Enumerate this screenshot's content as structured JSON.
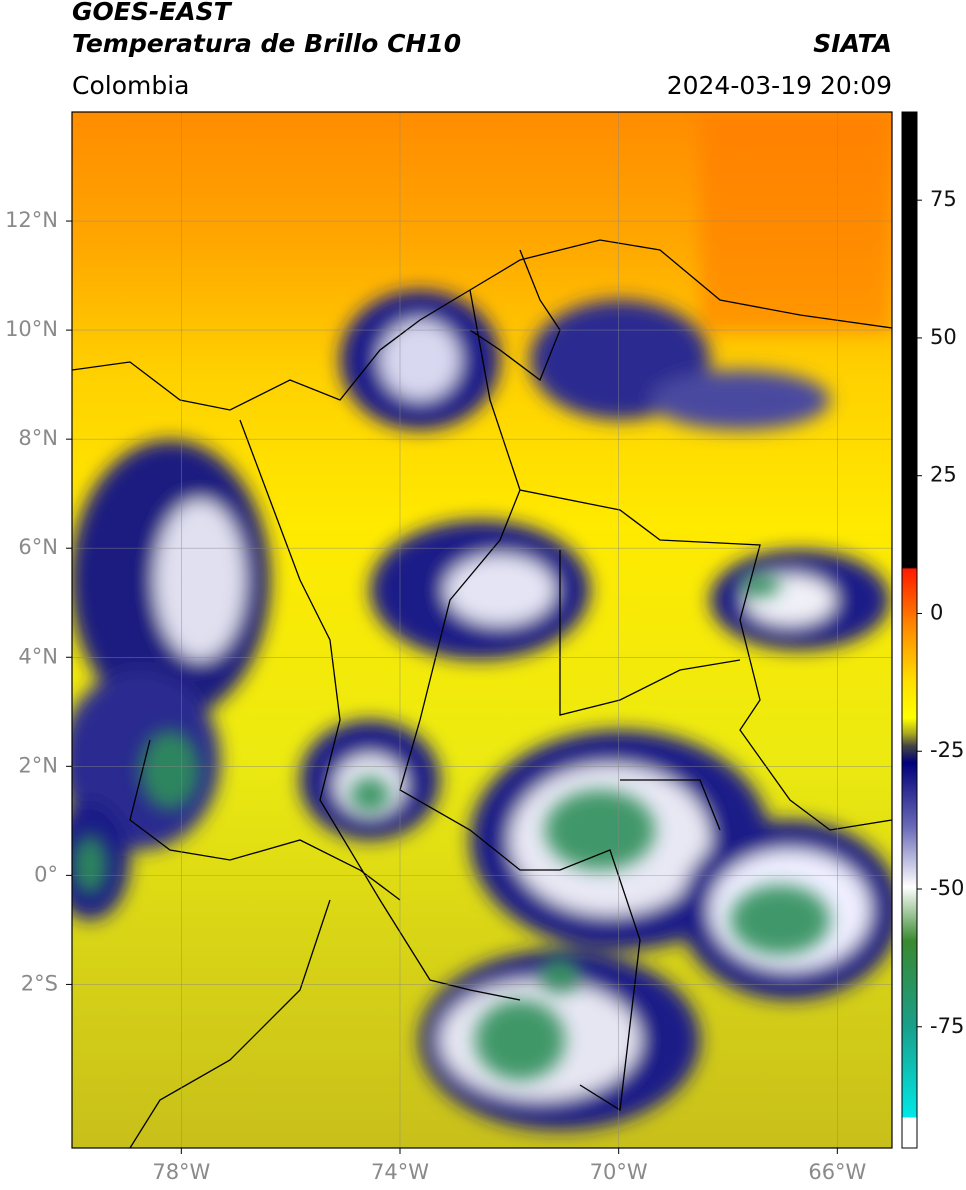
{
  "header": {
    "title": "GOES-EAST",
    "subtitle": "Temperatura de Brillo CH10",
    "source": "SIATA",
    "region": "Colombia",
    "datetime": "2024-03-19 20:09"
  },
  "map": {
    "latlim": [
      -5,
      14
    ],
    "lonlim": [
      -80,
      -65
    ],
    "grid": true,
    "lat_ticks": [
      {
        "value": 12,
        "label": "12°N"
      },
      {
        "value": 10,
        "label": "10°N"
      },
      {
        "value": 8,
        "label": "8°N"
      },
      {
        "value": 6,
        "label": "6°N"
      },
      {
        "value": 4,
        "label": "4°N"
      },
      {
        "value": 2,
        "label": "2°N"
      },
      {
        "value": 0,
        "label": "0°"
      },
      {
        "value": -2,
        "label": "2°S"
      }
    ],
    "lon_ticks": [
      {
        "value": -78,
        "label": "78°W"
      },
      {
        "value": -74,
        "label": "74°W"
      },
      {
        "value": -70,
        "label": "70°W"
      },
      {
        "value": -66,
        "label": "66°W"
      }
    ]
  },
  "colorbar": {
    "lim": [
      -97,
      91
    ],
    "ticks": [
      75,
      50,
      25,
      0,
      -25,
      -50,
      -75
    ]
  }
}
